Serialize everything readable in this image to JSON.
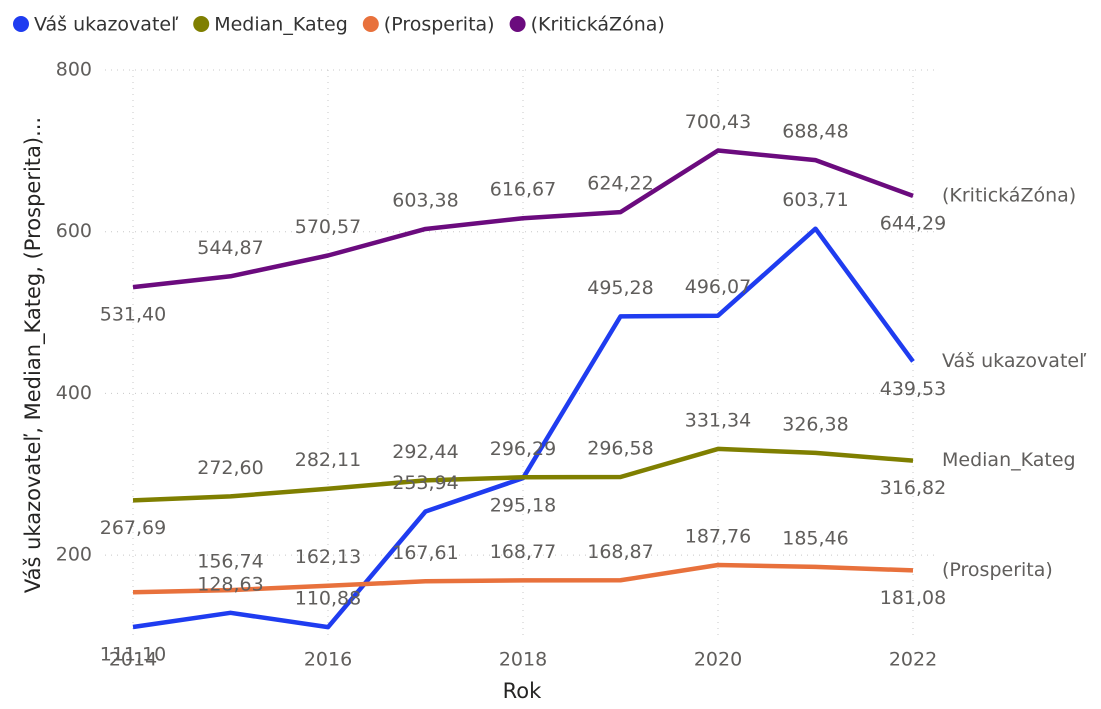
{
  "chart_data": {
    "type": "line",
    "y_label": "Váš ukazovateľ, Median_Kateg, (Prosperita)...",
    "x_label": "Rok",
    "x": [
      2014,
      2015,
      2016,
      2017,
      2018,
      2019,
      2020,
      2021,
      2022
    ],
    "xlim": [
      2014,
      2022
    ],
    "xticks": [
      2014,
      2016,
      2018,
      2020,
      2022
    ],
    "ylim": [
      95,
      800
    ],
    "yticks": [
      200,
      400,
      600,
      800
    ],
    "grid": true,
    "legend": "top-left",
    "series": [
      {
        "name": "Váš ukazovateľ",
        "color": "#1f3cf0",
        "values": [
          111.1,
          128.63,
          110.88,
          253.94,
          295.18,
          495.28,
          496.07,
          603.71,
          439.53
        ],
        "value_labels": [
          "111,10",
          "128,63",
          "110,88",
          "253,94",
          "295,18",
          "495,28",
          "496,07",
          "603,71",
          "439,53"
        ]
      },
      {
        "name": "Median_Kateg",
        "color": "#7f7f00",
        "values": [
          267.69,
          272.6,
          282.11,
          292.44,
          296.29,
          296.58,
          331.34,
          326.38,
          316.82
        ],
        "value_labels": [
          "267,69",
          "272,60",
          "282,11",
          "292,44",
          "296,29",
          "296,58",
          "331,34",
          "326,38",
          "316,82"
        ]
      },
      {
        "name": "(Prosperita)",
        "color": "#e8713c",
        "values": [
          154,
          156.74,
          162.13,
          167.61,
          168.77,
          168.87,
          187.76,
          185.46,
          181.08
        ],
        "value_labels": [
          null,
          "156,74",
          "162,13",
          "167,61",
          "168,77",
          "168,87",
          "187,76",
          "185,46",
          "181,08"
        ]
      },
      {
        "name": "(KritickáZóna)",
        "color": "#6b0b7e",
        "values": [
          531.4,
          544.87,
          570.57,
          603.38,
          616.67,
          624.22,
          700.43,
          688.48,
          644.29
        ],
        "value_labels": [
          "531,40",
          "544,87",
          "570,57",
          "603,38",
          "616,67",
          "624,22",
          "700,43",
          "688,48",
          "644,29"
        ]
      }
    ]
  }
}
